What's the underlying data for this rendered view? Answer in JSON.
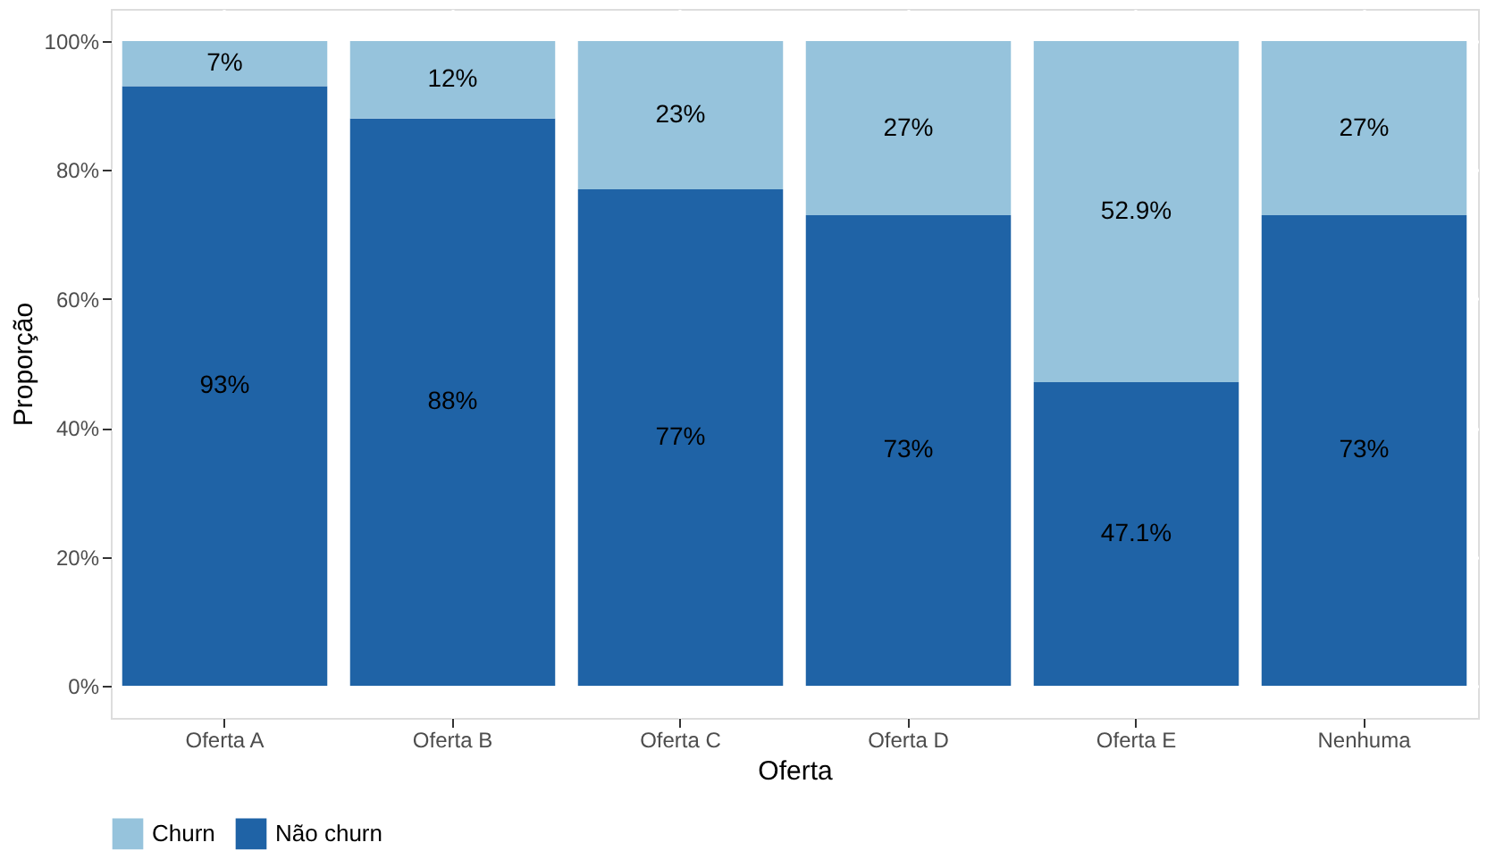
{
  "chart_data": {
    "type": "bar",
    "stacked": true,
    "xlabel": "Oferta",
    "ylabel": "Proporção",
    "categories": [
      "Oferta A",
      "Oferta B",
      "Oferta C",
      "Oferta D",
      "Oferta E",
      "Nenhuma"
    ],
    "series": [
      {
        "name": "Não churn",
        "color": "#1f63a6",
        "values": [
          93,
          88,
          77,
          73,
          47.1,
          73
        ],
        "value_labels": [
          "93%",
          "88%",
          "77%",
          "73%",
          "47.1%",
          "73%"
        ]
      },
      {
        "name": "Churn",
        "color": "#96c3dc",
        "values": [
          7,
          12,
          23,
          27,
          52.9,
          27
        ],
        "value_labels": [
          "7%",
          "12%",
          "23%",
          "27%",
          "52.9%",
          "27%"
        ]
      }
    ],
    "ylim": [
      -5,
      105
    ],
    "yticks": [
      {
        "value": 0,
        "label": "0%"
      },
      {
        "value": 20,
        "label": "20%"
      },
      {
        "value": 40,
        "label": "40%"
      },
      {
        "value": 60,
        "label": "60%"
      },
      {
        "value": 80,
        "label": "80%"
      },
      {
        "value": 100,
        "label": "100%"
      }
    ],
    "grid": true,
    "legend": "bottom"
  }
}
